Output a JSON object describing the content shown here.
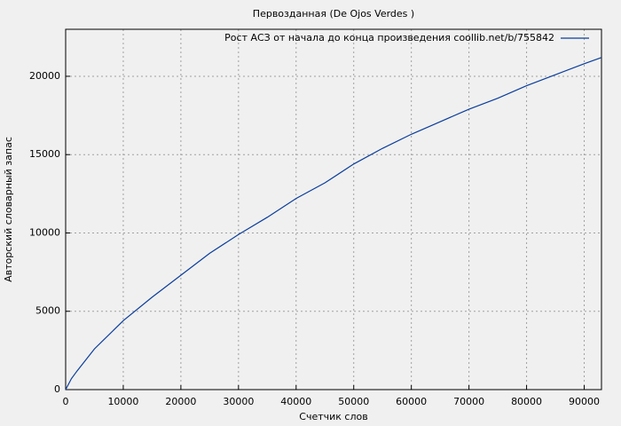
{
  "chart_data": {
    "type": "line",
    "title": "Первозданная (De Ojos Verdes )",
    "xlabel": "Счетчик слов",
    "ylabel": "Авторский словарный запас",
    "series": [
      {
        "name": "Рост АСЗ от начала до конца произведения coollib.net/b/755842",
        "color": "#0a3d9c",
        "x": [
          0,
          1000,
          2000,
          5000,
          10000,
          15000,
          20000,
          25000,
          30000,
          35000,
          40000,
          45000,
          50000,
          55000,
          60000,
          65000,
          70000,
          75000,
          80000,
          85000,
          90000,
          93000
        ],
        "values": [
          0,
          700,
          1200,
          2600,
          4400,
          5900,
          7300,
          8700,
          9900,
          11000,
          12200,
          13200,
          14400,
          15400,
          16300,
          17100,
          17900,
          18600,
          19400,
          20100,
          20800,
          21200
        ]
      }
    ],
    "xlim": [
      0,
      93000
    ],
    "ylim": [
      0,
      23000
    ],
    "xticks": [
      0,
      10000,
      20000,
      30000,
      40000,
      50000,
      60000,
      70000,
      80000,
      90000
    ],
    "yticks": [
      0,
      5000,
      10000,
      15000,
      20000
    ],
    "grid": true,
    "legend": "top-right"
  }
}
